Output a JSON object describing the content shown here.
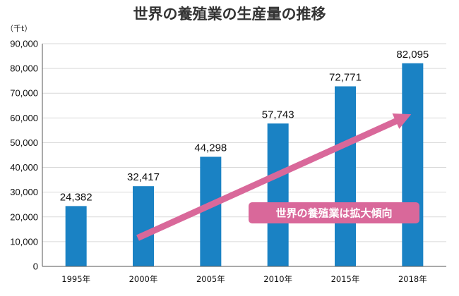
{
  "chart_data": {
    "type": "bar",
    "title": "世界の養殖業の生産量の推移",
    "unit_label": "（千t）",
    "xlabel": "",
    "ylabel": "（千t）",
    "categories": [
      "1995年",
      "2000年",
      "2005年",
      "2010年",
      "2015年",
      "2018年"
    ],
    "values": [
      24382,
      32417,
      44298,
      57743,
      72771,
      82095
    ],
    "value_labels": [
      "24,382",
      "32,417",
      "44,298",
      "57,743",
      "72,771",
      "82,095"
    ],
    "ylim": [
      0,
      90000
    ],
    "yticks": [
      0,
      10000,
      20000,
      30000,
      40000,
      50000,
      60000,
      70000,
      80000,
      90000
    ],
    "ytick_labels": [
      "0",
      "10,000",
      "20,000",
      "30,000",
      "40,000",
      "50,000",
      "60,000",
      "70,000",
      "80,000",
      "90,000"
    ],
    "grid": true,
    "annotation": {
      "text": "世界の養殖業は拡大傾向",
      "arrow_from": {
        "category": "2000年",
        "value": 11500
      },
      "arrow_to": {
        "category": "2018年",
        "value": 61500
      }
    }
  },
  "colors": {
    "bar": "#1a82c4",
    "grid": "#d9d9d9",
    "axis": "#555555",
    "arrow": "#d9689a",
    "callout_bg": "#d9689a",
    "callout_text": "#ffffff"
  }
}
